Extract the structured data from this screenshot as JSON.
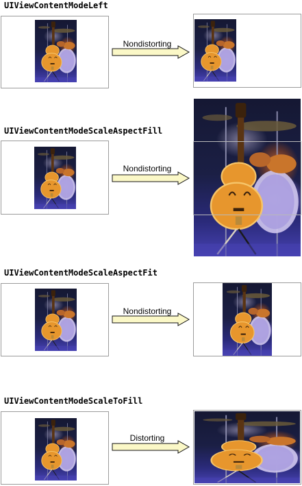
{
  "sections": [
    {
      "title": "UIViewContentModeLeft",
      "arrow_label": "Nondistorting"
    },
    {
      "title": "UIViewContentModeScaleAspectFill",
      "arrow_label": "Nondistorting"
    },
    {
      "title": "UIViewContentModeScaleAspectFit",
      "arrow_label": "Nondistorting"
    },
    {
      "title": "UIViewContentModeScaleToFill",
      "arrow_label": "Distorting"
    }
  ],
  "colors": {
    "frame_border": "#9b9b9b",
    "arrow_fill": "#fbf8c7",
    "arrow_stroke": "#111111",
    "guitar_body": "#e7962d",
    "guitar_edge": "#f6c56a",
    "stage_floor": "#4742b2"
  },
  "icons": {
    "arrow": "right-arrow-icon",
    "image": "guitar-photo-thumbnail"
  }
}
